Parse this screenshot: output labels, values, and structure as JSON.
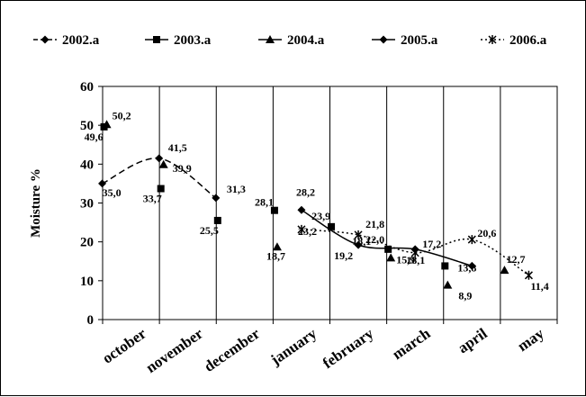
{
  "chart_data": {
    "type": "line",
    "xlabel": "",
    "ylabel": "Moisture %",
    "ylim": [
      0,
      60
    ],
    "yticks": [
      "0",
      "10",
      "20",
      "30",
      "40",
      "50",
      "60"
    ],
    "categories": [
      "october",
      "november",
      "december",
      "january",
      "february",
      "march",
      "april",
      "may"
    ],
    "grid": "vertical category separators",
    "legend_position": "top",
    "series": [
      {
        "name": "2002.a",
        "marker": "diamond",
        "line": "dashed",
        "color": "#000000",
        "values": [
          35.0,
          41.5,
          31.3,
          null,
          null,
          null,
          null,
          null
        ],
        "labels": [
          "35,0",
          "41,5",
          "31,3",
          null,
          null,
          null,
          null,
          null
        ]
      },
      {
        "name": "2003.a",
        "marker": "square",
        "line": "none",
        "color": "#000000",
        "values": [
          49.6,
          33.7,
          25.5,
          28.1,
          23.9,
          18.1,
          13.8,
          null
        ],
        "labels": [
          "49,6",
          "33,7",
          "25,5",
          "28,1",
          "23,9",
          "18,1",
          "13,8",
          null
        ]
      },
      {
        "name": "2004.a",
        "marker": "triangle",
        "line": "none",
        "color": "#000000",
        "values": [
          50.2,
          39.9,
          null,
          18.7,
          null,
          15.9,
          8.9,
          12.7
        ],
        "labels": [
          "50,2",
          "39,9",
          null,
          "18,7",
          null,
          "15,9",
          "8,9",
          "12,7"
        ]
      },
      {
        "name": "2005.a",
        "marker": "diamond",
        "line": "solid",
        "color": "#000000",
        "values": [
          null,
          null,
          null,
          28.2,
          19.2,
          18.1,
          13.8,
          null
        ],
        "labels": [
          null,
          null,
          null,
          "28,2",
          "19,2",
          "18,1",
          null,
          null
        ]
      },
      {
        "name": "2006.a",
        "marker": "x",
        "line": "dotted",
        "color": "#000000",
        "values": [
          null,
          null,
          null,
          23.2,
          21.8,
          17.2,
          20.6,
          11.4
        ],
        "labels": [
          null,
          null,
          null,
          "23,2",
          "21,8",
          "17,2",
          "20,6",
          "11,4"
        ]
      }
    ],
    "annotations": [
      "22,0"
    ]
  }
}
